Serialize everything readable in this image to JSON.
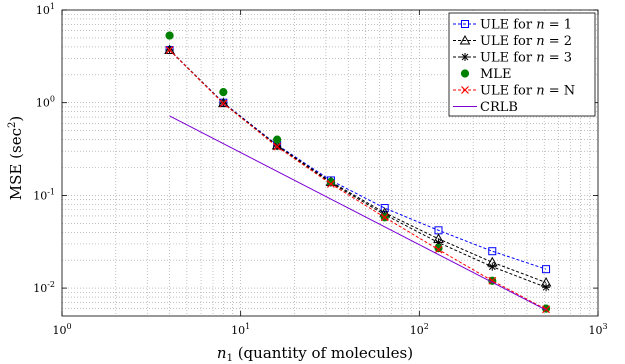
{
  "chart_data": {
    "type": "line",
    "xscale": "log",
    "yscale": "log",
    "xlim": [
      1,
      1000
    ],
    "ylim": [
      0.005,
      10
    ],
    "grid": true,
    "legend_position": "top-right",
    "xlabel_var": "n",
    "xlabel_sub": "1",
    "xlabel_rest": " (quantity of molecules)",
    "ylabel": "MSE (sec",
    "ylabel_sup": "2",
    "ylabel_end": ")",
    "x_ticks": [
      {
        "value": 1,
        "base": "10",
        "exp": "0"
      },
      {
        "value": 10,
        "base": "10",
        "exp": "1"
      },
      {
        "value": 100,
        "base": "10",
        "exp": "2"
      },
      {
        "value": 1000,
        "base": "10",
        "exp": "3"
      }
    ],
    "y_ticks": [
      {
        "value": 0.01,
        "base": "10",
        "exp": "-2"
      },
      {
        "value": 0.1,
        "base": "10",
        "exp": "-1"
      },
      {
        "value": 1,
        "base": "10",
        "exp": "0"
      },
      {
        "value": 10,
        "base": "10",
        "exp": "1"
      }
    ],
    "x": [
      4,
      8,
      16,
      32,
      64,
      128,
      256,
      512
    ],
    "series": [
      {
        "name": "ULE for ",
        "var": "n",
        "eq": " = 1",
        "color": "#0000ff",
        "marker": "square",
        "dash": true,
        "values": [
          3.7,
          1.0,
          0.35,
          0.145,
          0.073,
          0.042,
          0.025,
          0.016
        ]
      },
      {
        "name": "ULE for ",
        "var": "n",
        "eq": " = 2",
        "color": "#000000",
        "marker": "triangle",
        "dash": true,
        "values": [
          3.7,
          0.99,
          0.345,
          0.14,
          0.065,
          0.034,
          0.019,
          0.0115
        ]
      },
      {
        "name": "ULE for ",
        "var": "n",
        "eq": " = 3",
        "color": "#000000",
        "marker": "star",
        "dash": true,
        "values": [
          3.7,
          0.99,
          0.34,
          0.137,
          0.062,
          0.031,
          0.017,
          0.0102
        ]
      },
      {
        "name": "MLE",
        "var": "",
        "eq": "",
        "color": "#008000",
        "marker": "dot",
        "dash": false,
        "no_line": true,
        "values": [
          5.3,
          1.3,
          0.4,
          0.14,
          0.058,
          0.027,
          0.012,
          0.006
        ]
      },
      {
        "name": "ULE for ",
        "var": "n",
        "eq": " = N",
        "color": "#ff0000",
        "marker": "x",
        "dash": true,
        "values": [
          3.7,
          0.98,
          0.335,
          0.133,
          0.058,
          0.026,
          0.012,
          0.0059
        ]
      },
      {
        "name": "CRLB",
        "var": "",
        "eq": "",
        "color": "#7b00d4",
        "marker": "none",
        "dash": false,
        "x_values": [
          4,
          512
        ],
        "values": [
          0.72,
          0.0058
        ]
      }
    ]
  }
}
